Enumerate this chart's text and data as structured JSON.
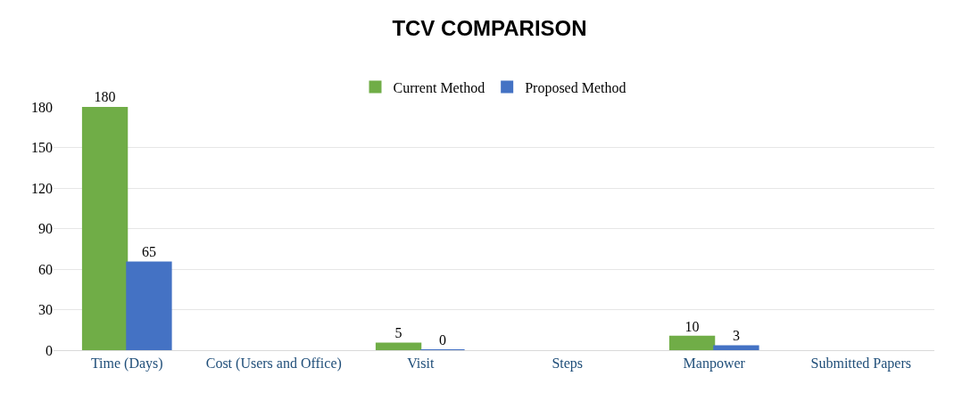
{
  "chart_data": {
    "type": "bar",
    "title": "TCV COMPARISON",
    "categories": [
      "Time (Days)",
      "Cost (Users and Office)",
      "Visit",
      "Steps",
      "Manpower",
      "Submitted Papers"
    ],
    "series": [
      {
        "name": "Current Method",
        "color": "#70ad47",
        "values": [
          180,
          null,
          5,
          null,
          10,
          null
        ]
      },
      {
        "name": "Proposed Method",
        "color": "#4472c4",
        "values": [
          65,
          null,
          0,
          null,
          3,
          null
        ]
      }
    ],
    "ylim": [
      0,
      180
    ],
    "yticks": [
      0,
      30,
      60,
      90,
      120,
      150,
      180
    ],
    "grid": "y",
    "legend": "top",
    "data_labels": true
  }
}
